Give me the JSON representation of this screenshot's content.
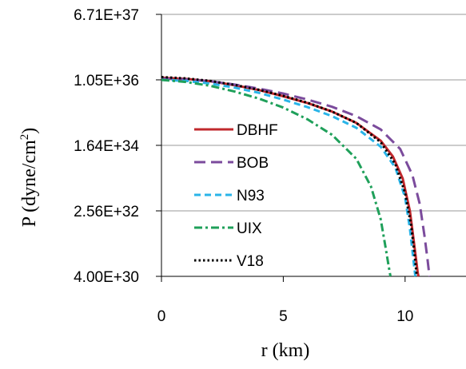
{
  "chart_data": {
    "type": "line",
    "xlabel": "r (km)",
    "ylabel_main": "P (dyne/cm",
    "ylabel_sup": "2",
    "ylabel_close": ")",
    "y_scale": "log",
    "xlim": [
      0,
      12.5
    ],
    "ylim": [
      4e+30,
      6.71e+37
    ],
    "x_ticks": [
      0,
      5,
      10
    ],
    "x_tick_labels": [
      "0",
      "5",
      "10"
    ],
    "y_ticks": [
      4e+30,
      2.56e+32,
      1.64e+34,
      1.05e+36,
      6.71e+37
    ],
    "y_tick_labels": [
      "4.00E+30",
      "2.56E+32",
      "1.64E+34",
      "1.05E+36",
      "6.71E+37"
    ],
    "legend_position": "center-left",
    "series": [
      {
        "name": "DBHF",
        "color": "#c0282d",
        "dash": "solid",
        "x": [
          0,
          1,
          2,
          3,
          4,
          5,
          6,
          7,
          8,
          9,
          9.5,
          9.9,
          10.2,
          10.35,
          10.45,
          10.52,
          10.55
        ],
        "y": [
          1.2e+36,
          1.12e+36,
          9.6e+35,
          7.5e+35,
          5.5e+35,
          3.7e+35,
          2.4e+35,
          1.4e+35,
          6.8e+34,
          2.2e+34,
          8e+33,
          2e+33,
          2.5e+32,
          4e+31,
          1.2e+31,
          5e+30,
          4e+30
        ]
      },
      {
        "name": "BOB",
        "color": "#7b4b9c",
        "dash": "long-dash",
        "x": [
          0,
          1,
          2,
          3,
          4,
          5,
          6,
          7,
          8,
          9,
          9.8,
          10.3,
          10.6,
          10.8,
          10.92,
          11.0
        ],
        "y": [
          1.15e+36,
          1.08e+36,
          9.6e+35,
          7.8e+35,
          6e+35,
          4.4e+35,
          3e+35,
          1.9e+35,
          1.05e+35,
          4.5e+34,
          1.3e+34,
          2.5e+33,
          4e+32,
          5e+31,
          1.2e+31,
          4e+30
        ]
      },
      {
        "name": "N93",
        "color": "#29b4e8",
        "dash": "dash",
        "x": [
          0,
          1,
          2,
          3,
          4,
          5,
          6,
          7,
          8,
          9,
          9.6,
          10.0,
          10.2,
          10.32,
          10.42
        ],
        "y": [
          1.05e+36,
          9.8e+35,
          8.3e+35,
          6.4e+35,
          4.6e+35,
          3e+35,
          1.85e+35,
          1.05e+35,
          5e+34,
          1.5e+34,
          4e+33,
          6e+32,
          8e+31,
          1.5e+31,
          4e+30
        ]
      },
      {
        "name": "UIX",
        "color": "#1fa05a",
        "dash": "dash-dot",
        "x": [
          0,
          1,
          2,
          3,
          4,
          5,
          6,
          7,
          8,
          8.6,
          9.0,
          9.2,
          9.32,
          9.4
        ],
        "y": [
          1.05e+36,
          9.2e+35,
          7.2e+35,
          5e+35,
          3.2e+35,
          1.8e+35,
          8.5e+34,
          3.2e+34,
          7e+33,
          1.2e+33,
          1.5e+32,
          2.5e+31,
          8e+30,
          4e+30
        ]
      },
      {
        "name": "V18",
        "color": "#000000",
        "dash": "dot",
        "x": [
          0,
          1,
          2,
          3,
          4,
          5,
          6,
          7,
          8,
          9,
          9.6,
          10.0,
          10.25,
          10.38,
          10.48
        ],
        "y": [
          1.25e+36,
          1.15e+36,
          9.8e+35,
          7.6e+35,
          5.6e+35,
          3.8e+35,
          2.45e+35,
          1.4e+35,
          6.8e+34,
          2e+34,
          5e+33,
          8e+32,
          1e+32,
          1.8e+31,
          4e+30
        ]
      }
    ]
  }
}
